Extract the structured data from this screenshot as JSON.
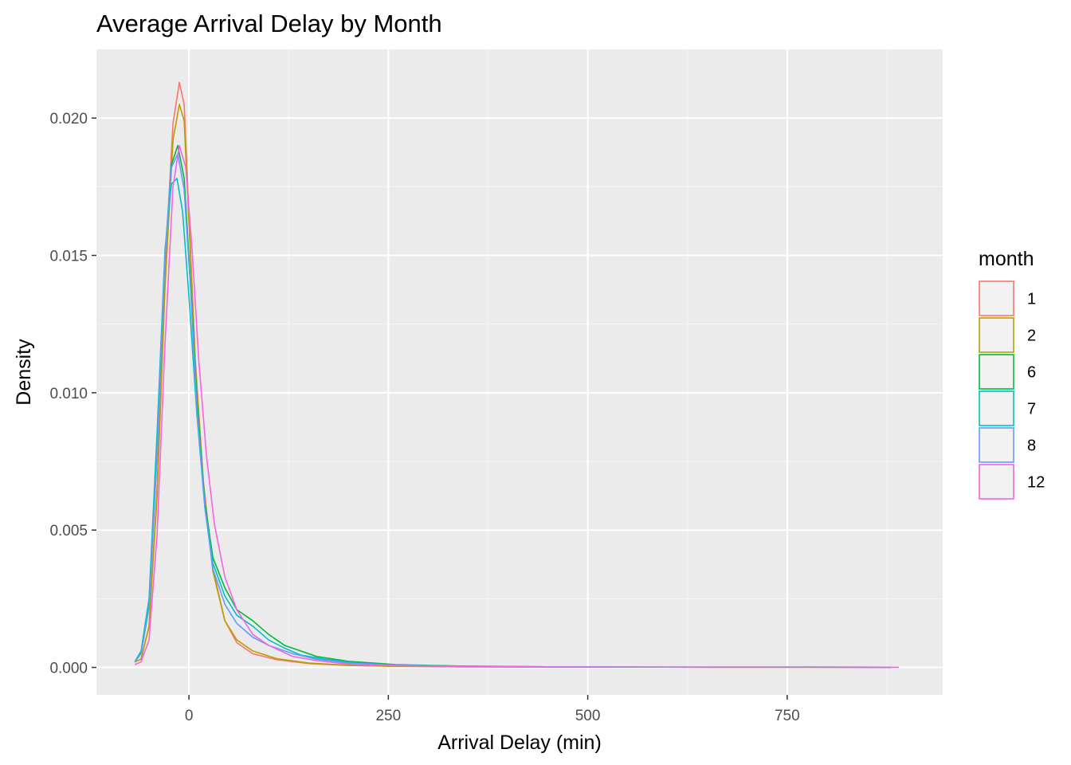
{
  "chart_data": {
    "type": "line",
    "title": "Average Arrival Delay by Month",
    "xlabel": "Arrival Delay (min)",
    "ylabel": "Density",
    "xlim": [
      -116,
      945
    ],
    "ylim": [
      -0.001,
      0.0225
    ],
    "x_ticks": [
      0,
      250,
      500,
      750
    ],
    "y_ticks": [
      0.0,
      0.005,
      0.01,
      0.015,
      0.02
    ],
    "y_tick_labels": [
      "0.000",
      "0.005",
      "0.010",
      "0.015",
      "0.020"
    ],
    "grid": true,
    "legend": {
      "title": "month",
      "position": "right"
    },
    "series": [
      {
        "name": "1",
        "color": "#F8766D",
        "points": [
          [
            -68,
            0.0002
          ],
          [
            -60,
            0.0003
          ],
          [
            -50,
            0.0015
          ],
          [
            -40,
            0.0065
          ],
          [
            -30,
            0.0145
          ],
          [
            -20,
            0.0198
          ],
          [
            -12,
            0.0213
          ],
          [
            -6,
            0.0205
          ],
          [
            0,
            0.0165
          ],
          [
            8,
            0.0112
          ],
          [
            18,
            0.0068
          ],
          [
            30,
            0.0036
          ],
          [
            45,
            0.0017
          ],
          [
            60,
            0.0009
          ],
          [
            80,
            0.0005
          ],
          [
            110,
            0.00028
          ],
          [
            150,
            0.00014
          ],
          [
            200,
            7e-05
          ],
          [
            260,
            4e-05
          ],
          [
            340,
            2e-05
          ],
          [
            450,
            1.2e-05
          ],
          [
            600,
            8e-06
          ],
          [
            750,
            6e-06
          ],
          [
            880,
            4e-06
          ]
        ]
      },
      {
        "name": "2",
        "color": "#B79F00",
        "points": [
          [
            -68,
            0.0002
          ],
          [
            -60,
            0.0003
          ],
          [
            -50,
            0.0015
          ],
          [
            -40,
            0.0062
          ],
          [
            -30,
            0.0138
          ],
          [
            -20,
            0.0192
          ],
          [
            -12,
            0.0205
          ],
          [
            -6,
            0.0199
          ],
          [
            0,
            0.0162
          ],
          [
            8,
            0.011
          ],
          [
            18,
            0.0066
          ],
          [
            30,
            0.0035
          ],
          [
            45,
            0.0017
          ],
          [
            60,
            0.001
          ],
          [
            80,
            0.0006
          ],
          [
            110,
            0.00032
          ],
          [
            150,
            0.00016
          ],
          [
            200,
            8e-05
          ],
          [
            260,
            4e-05
          ],
          [
            340,
            2e-05
          ],
          [
            450,
            1.2e-05
          ],
          [
            600,
            8e-06
          ],
          [
            750,
            6e-06
          ],
          [
            880,
            4e-06
          ]
        ]
      },
      {
        "name": "6",
        "color": "#00BA38",
        "points": [
          [
            -68,
            0.0002
          ],
          [
            -60,
            0.0005
          ],
          [
            -50,
            0.0022
          ],
          [
            -40,
            0.0078
          ],
          [
            -30,
            0.015
          ],
          [
            -22,
            0.0183
          ],
          [
            -14,
            0.019
          ],
          [
            -6,
            0.0178
          ],
          [
            2,
            0.014
          ],
          [
            10,
            0.0097
          ],
          [
            20,
            0.006
          ],
          [
            30,
            0.004
          ],
          [
            45,
            0.0029
          ],
          [
            60,
            0.0021
          ],
          [
            80,
            0.0017
          ],
          [
            100,
            0.0012
          ],
          [
            120,
            0.0008
          ],
          [
            130,
            0.0007
          ],
          [
            160,
            0.0004
          ],
          [
            200,
            0.00022
          ],
          [
            260,
            0.0001
          ],
          [
            340,
            5e-05
          ],
          [
            450,
            2e-05
          ],
          [
            600,
            1e-05
          ],
          [
            780,
            1.5e-05
          ],
          [
            880,
            6e-06
          ]
        ]
      },
      {
        "name": "7",
        "color": "#00BFC4",
        "points": [
          [
            -68,
            0.0002
          ],
          [
            -60,
            0.0006
          ],
          [
            -50,
            0.0025
          ],
          [
            -40,
            0.0085
          ],
          [
            -30,
            0.0152
          ],
          [
            -22,
            0.0176
          ],
          [
            -15,
            0.0178
          ],
          [
            -8,
            0.0166
          ],
          [
            0,
            0.0135
          ],
          [
            10,
            0.0092
          ],
          [
            20,
            0.0058
          ],
          [
            30,
            0.0038
          ],
          [
            45,
            0.0026
          ],
          [
            60,
            0.0019
          ],
          [
            80,
            0.0015
          ],
          [
            100,
            0.001
          ],
          [
            120,
            0.0007
          ],
          [
            140,
            0.00045
          ],
          [
            170,
            0.0003
          ],
          [
            210,
            0.00016
          ],
          [
            260,
            9e-05
          ],
          [
            340,
            4e-05
          ],
          [
            450,
            2e-05
          ],
          [
            600,
            1e-05
          ],
          [
            780,
            1e-05
          ],
          [
            880,
            5e-06
          ]
        ]
      },
      {
        "name": "8",
        "color": "#619CFF",
        "points": [
          [
            -68,
            0.0002
          ],
          [
            -60,
            0.0005
          ],
          [
            -50,
            0.0022
          ],
          [
            -40,
            0.0078
          ],
          [
            -30,
            0.015
          ],
          [
            -22,
            0.0182
          ],
          [
            -14,
            0.0187
          ],
          [
            -6,
            0.0174
          ],
          [
            2,
            0.0138
          ],
          [
            10,
            0.0094
          ],
          [
            20,
            0.0058
          ],
          [
            30,
            0.0036
          ],
          [
            45,
            0.0023
          ],
          [
            60,
            0.0016
          ],
          [
            80,
            0.0011
          ],
          [
            100,
            0.0008
          ],
          [
            130,
            0.0005
          ],
          [
            160,
            0.0003
          ],
          [
            200,
            0.00016
          ],
          [
            260,
            8e-05
          ],
          [
            340,
            4e-05
          ],
          [
            450,
            2e-05
          ],
          [
            600,
            1e-05
          ],
          [
            780,
            8e-06
          ],
          [
            880,
            5e-06
          ]
        ]
      },
      {
        "name": "12",
        "color": "#F564E3",
        "points": [
          [
            -68,
            0.0001
          ],
          [
            -60,
            0.0002
          ],
          [
            -50,
            0.001
          ],
          [
            -40,
            0.0048
          ],
          [
            -30,
            0.0118
          ],
          [
            -20,
            0.0175
          ],
          [
            -12,
            0.019
          ],
          [
            -4,
            0.0182
          ],
          [
            4,
            0.0152
          ],
          [
            12,
            0.0113
          ],
          [
            22,
            0.0077
          ],
          [
            32,
            0.0052
          ],
          [
            45,
            0.0033
          ],
          [
            60,
            0.0021
          ],
          [
            80,
            0.0012
          ],
          [
            100,
            0.0008
          ],
          [
            130,
            0.0004
          ],
          [
            160,
            0.00025
          ],
          [
            200,
            0.00012
          ],
          [
            260,
            6e-05
          ],
          [
            340,
            3e-05
          ],
          [
            450,
            1.5e-05
          ],
          [
            600,
            8e-06
          ],
          [
            780,
            6e-06
          ],
          [
            890,
            4e-06
          ]
        ]
      }
    ]
  }
}
